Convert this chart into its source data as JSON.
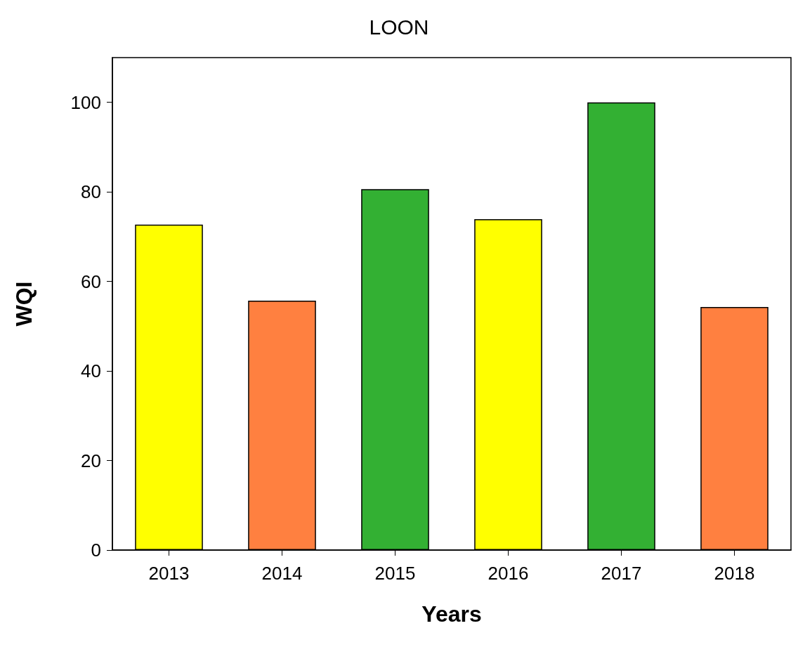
{
  "chart_data": {
    "type": "bar",
    "title": "LOON",
    "xlabel": "Years",
    "ylabel": "WQI",
    "categories": [
      "2013",
      "2014",
      "2015",
      "2016",
      "2017",
      "2018"
    ],
    "values": [
      72.7,
      55.7,
      80.6,
      73.9,
      100,
      54.3
    ],
    "colors": [
      "#ffff00",
      "#ff8040",
      "#33b033",
      "#ffff00",
      "#33b033",
      "#ff8040"
    ],
    "ylim": [
      0,
      110
    ],
    "yticks": [
      0,
      20,
      40,
      60,
      80,
      100
    ],
    "grid": false
  }
}
